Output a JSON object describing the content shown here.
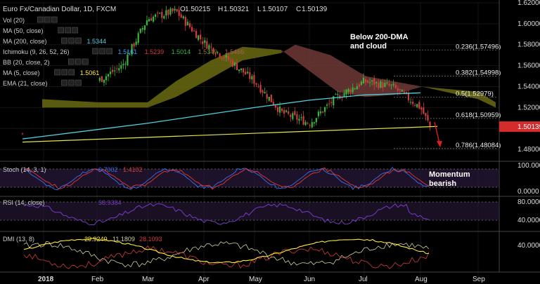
{
  "header": {
    "symbol_title": "Euro Fx/Canadian Dollar, 1D, FXCM",
    "o_label": "O",
    "o_value": "1.50215",
    "h_label": "H",
    "h_value": "1.50321",
    "l_label": "L",
    "l_value": "1.50107",
    "c_label": "C",
    "c_value": "1.50139"
  },
  "indicators": [
    {
      "label": "Vol (20)",
      "value": "",
      "color": "#ffffff"
    },
    {
      "label": "MA (50, close)",
      "value": "",
      "color": "#ffffff"
    },
    {
      "label": "MA (200, close)",
      "value": "1.5344",
      "color": "#4fd0e0"
    },
    {
      "label": "Ichimoku (9, 26, 52, 26)",
      "values": [
        {
          "v": "1.5161",
          "color": "#3aa0ff"
        },
        {
          "v": "1.5239",
          "color": "#d23c3c"
        },
        {
          "v": "1.5014",
          "color": "#3cb43c"
        },
        {
          "v": "1.5349",
          "color": "#7a7a30"
        },
        {
          "v": "1.5466",
          "color": "#b05a5a"
        }
      ]
    },
    {
      "label": "BB (20, close, 2)",
      "value": "",
      "color": "#ffffff"
    },
    {
      "label": "MA (5, close)",
      "value": "1.5061",
      "color": "#ffeb3b"
    },
    {
      "label": "EMA (21, close)",
      "value": "",
      "color": "#ffffff"
    }
  ],
  "annotations": {
    "dma_note_line1": "Below 200-DMA",
    "dma_note_line2": "and cloud",
    "momentum_line1": "Momentum",
    "momentum_line2": "bearish"
  },
  "fib_levels": [
    {
      "label": "0.236(1.57496)",
      "price": 1.57496
    },
    {
      "label": "0.382(1.54998)",
      "price": 1.54998
    },
    {
      "label": "0.5(1.52979)",
      "price": 1.52979
    },
    {
      "label": "0.618(1.50959)",
      "price": 1.50959
    },
    {
      "label": "0.786(1.48084)",
      "price": 1.48084
    }
  ],
  "price_badge": {
    "value": "1.50139",
    "color": "#d22c2c"
  },
  "colors": {
    "bull": "#3cb43c",
    "bear": "#d23c3c",
    "ma200": "#4fd0e0",
    "ma5": "#ffeb3b",
    "cloud_bull": "#6b6b12",
    "cloud_bear": "#6e3a36",
    "trendline": "#e6e64a",
    "arrow": "#e02020",
    "stoch_k": "#3a6ff0",
    "stoch_d": "#e03a3a",
    "rsi": "#7a3ac8",
    "dmi_plus": "#d0d0a0",
    "dmi_minus": "#d23c3c",
    "adx": "#ffeb3b",
    "pane_band": "#2a1a3a"
  },
  "sub_panes": {
    "stoch": {
      "label": "Stoch (14, 3, 1)",
      "k": "0.7002",
      "d": "1.4102",
      "axis": [
        "100.0000",
        "0.0000"
      ]
    },
    "rsi": {
      "label": "RSI (14, close)",
      "value": "38.9384",
      "axis": [
        "80.0000",
        "40.0000"
      ]
    },
    "dmi": {
      "label": "DMI (13, 8)",
      "v1": "29.9240",
      "v2": "11.1809",
      "v3": "28.1093",
      "axis": [
        "40.0000"
      ]
    }
  },
  "chart_data": {
    "type": "candlestick",
    "title": "Euro Fx/Canadian Dollar, 1D, FXCM",
    "y_axis_labels": [
      "1.62000",
      "1.60000",
      "1.58000",
      "1.56000",
      "1.54000",
      "1.52000",
      "1.48000"
    ],
    "ylim": [
      1.47,
      1.62
    ],
    "x_axis_labels": [
      "2018",
      "Feb",
      "Mar",
      "Apr",
      "May",
      "Jun",
      "Jul",
      "Aug",
      "Sep"
    ],
    "close_path": [
      [
        "2018",
        1.495
      ],
      [
        "Jan-mid",
        1.52
      ],
      [
        "Feb",
        1.545
      ],
      [
        "Feb-mid",
        1.56
      ],
      [
        "Mar",
        1.605
      ],
      [
        "Mar-mid",
        1.612
      ],
      [
        "Apr",
        1.582
      ],
      [
        "Apr-mid",
        1.565
      ],
      [
        "May",
        1.545
      ],
      [
        "May-mid",
        1.515
      ],
      [
        "Jun",
        1.505
      ],
      [
        "Jun-mid",
        1.53
      ],
      [
        "Jul",
        1.545
      ],
      [
        "Jul-mid",
        1.54
      ],
      [
        "Aug",
        1.52
      ],
      [
        "Aug-end",
        1.5014
      ]
    ],
    "ma200_path": [
      [
        "2018",
        1.49
      ],
      [
        "Mar",
        1.505
      ],
      [
        "May",
        1.52
      ],
      [
        "Jun",
        1.527
      ],
      [
        "Jul",
        1.532
      ],
      [
        "Aug",
        1.534
      ]
    ],
    "trendline": [
      [
        "2018",
        1.487
      ],
      [
        "Aug-end",
        1.502
      ]
    ]
  }
}
